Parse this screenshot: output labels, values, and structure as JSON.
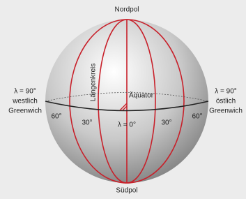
{
  "labels": {
    "north": "Nordpol",
    "south": "Südpol",
    "west": [
      "λ = 90°",
      "westlich",
      "Greenwich"
    ],
    "east": [
      "λ = 90°",
      "östlich",
      "Greenwich"
    ],
    "meridian": "Längenkreis",
    "equator": "Äquator",
    "prime": "λ = 0°",
    "degrees": [
      "60°",
      "30°",
      "30°",
      "60°"
    ]
  }
}
